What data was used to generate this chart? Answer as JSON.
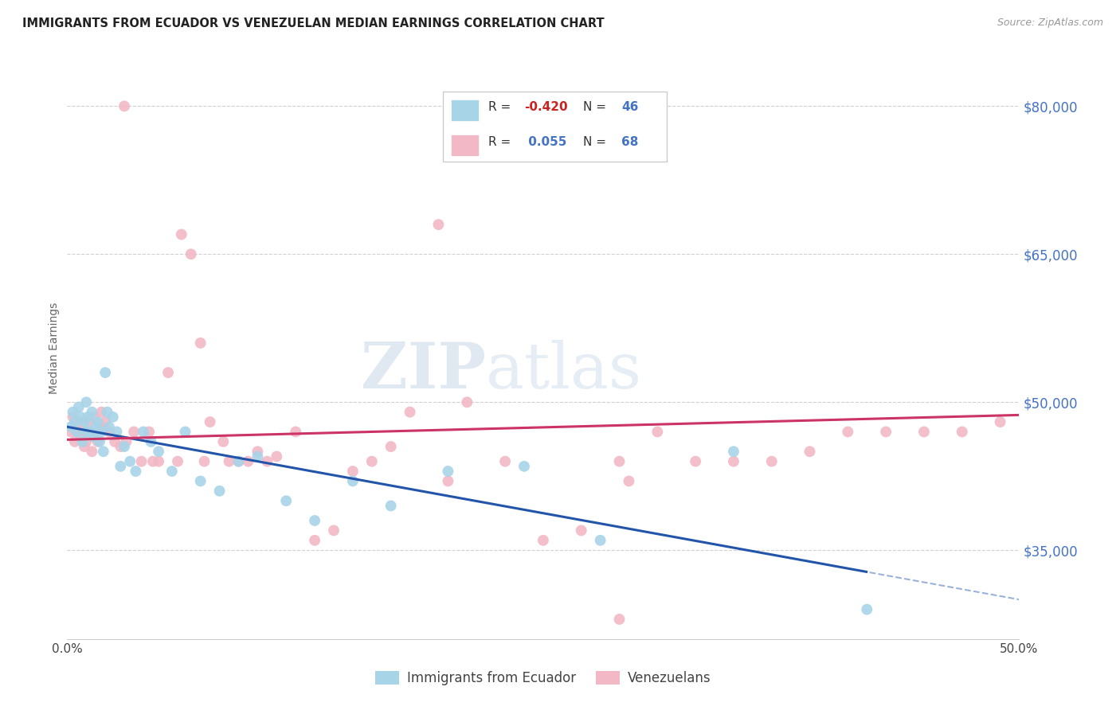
{
  "title": "IMMIGRANTS FROM ECUADOR VS VENEZUELAN MEDIAN EARNINGS CORRELATION CHART",
  "source": "Source: ZipAtlas.com",
  "ylabel": "Median Earnings",
  "xlim": [
    0.0,
    0.5
  ],
  "ylim": [
    26000,
    85000
  ],
  "yticks": [
    35000,
    50000,
    65000,
    80000
  ],
  "ytick_labels": [
    "$35,000",
    "$50,000",
    "$65,000",
    "$80,000"
  ],
  "xticks": [
    0.0,
    0.1,
    0.2,
    0.3,
    0.4,
    0.5
  ],
  "xtick_labels": [
    "0.0%",
    "",
    "",
    "",
    "",
    "50.0%"
  ],
  "blue_color": "#a8d4e8",
  "pink_color": "#f2b8c6",
  "blue_line_color": "#2255aa",
  "pink_line_color": "#cc3366",
  "right_axis_color": "#4472c4",
  "background_color": "#ffffff",
  "ecuador_x": [
    0.002,
    0.003,
    0.004,
    0.005,
    0.006,
    0.007,
    0.008,
    0.009,
    0.01,
    0.01,
    0.011,
    0.012,
    0.013,
    0.014,
    0.015,
    0.016,
    0.017,
    0.018,
    0.019,
    0.02,
    0.021,
    0.022,
    0.024,
    0.026,
    0.028,
    0.03,
    0.033,
    0.036,
    0.04,
    0.044,
    0.048,
    0.055,
    0.062,
    0.07,
    0.08,
    0.09,
    0.1,
    0.115,
    0.13,
    0.15,
    0.17,
    0.2,
    0.24,
    0.28,
    0.35,
    0.42
  ],
  "ecuador_y": [
    47500,
    49000,
    48000,
    47000,
    49500,
    48500,
    46000,
    48000,
    47000,
    50000,
    48500,
    47000,
    49000,
    46500,
    47500,
    48000,
    46000,
    47000,
    45000,
    53000,
    49000,
    47500,
    48500,
    47000,
    43500,
    45500,
    44000,
    43000,
    47000,
    46000,
    45000,
    43000,
    47000,
    42000,
    41000,
    44000,
    44500,
    40000,
    38000,
    42000,
    39500,
    43000,
    43500,
    36000,
    45000,
    29000
  ],
  "venezuela_x": [
    0.002,
    0.003,
    0.004,
    0.005,
    0.006,
    0.007,
    0.008,
    0.009,
    0.01,
    0.011,
    0.012,
    0.013,
    0.014,
    0.015,
    0.016,
    0.017,
    0.018,
    0.02,
    0.022,
    0.025,
    0.028,
    0.031,
    0.035,
    0.039,
    0.043,
    0.048,
    0.053,
    0.06,
    0.065,
    0.07,
    0.075,
    0.082,
    0.09,
    0.1,
    0.11,
    0.12,
    0.13,
    0.14,
    0.15,
    0.16,
    0.17,
    0.18,
    0.195,
    0.21,
    0.23,
    0.25,
    0.27,
    0.29,
    0.31,
    0.33,
    0.35,
    0.37,
    0.39,
    0.41,
    0.43,
    0.45,
    0.47,
    0.49,
    0.2,
    0.295,
    0.03,
    0.045,
    0.058,
    0.072,
    0.085,
    0.095,
    0.105,
    0.29
  ],
  "venezuela_y": [
    47000,
    48500,
    46000,
    47500,
    48000,
    46500,
    47000,
    45500,
    46000,
    48000,
    47000,
    45000,
    48500,
    47000,
    46000,
    47500,
    49000,
    48000,
    47000,
    46000,
    45500,
    46000,
    47000,
    44000,
    47000,
    44000,
    53000,
    67000,
    65000,
    56000,
    48000,
    46000,
    44000,
    45000,
    44500,
    47000,
    36000,
    37000,
    43000,
    44000,
    45500,
    49000,
    68000,
    50000,
    44000,
    36000,
    37000,
    44000,
    47000,
    44000,
    44000,
    44000,
    45000,
    47000,
    47000,
    47000,
    47000,
    48000,
    42000,
    42000,
    80000,
    44000,
    44000,
    44000,
    44000,
    44000,
    44000,
    28000
  ]
}
